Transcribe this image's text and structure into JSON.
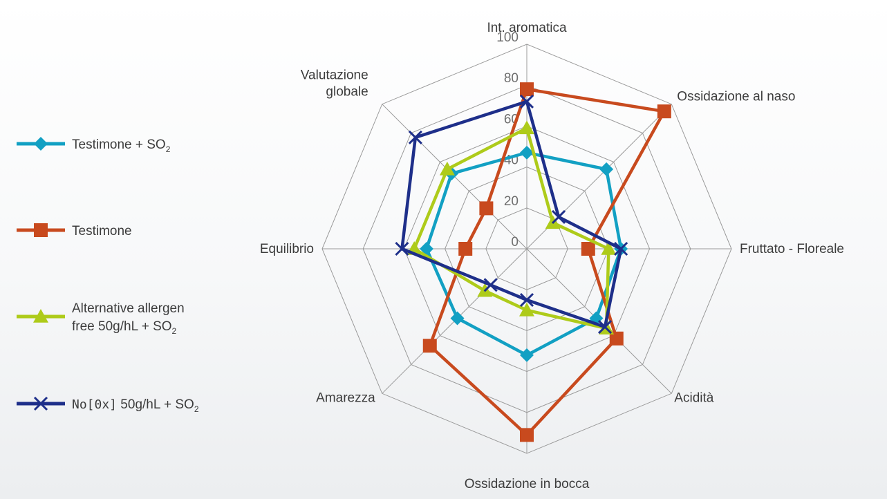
{
  "chart_data": {
    "type": "radar",
    "title": "",
    "axes": [
      "Int. aromatica",
      "Ossidazione al naso",
      "Fruttato - Floreale",
      "Acidità",
      "Ossidazione in bocca",
      "Amarezza",
      "Equilibrio",
      "Valutazione globale"
    ],
    "axis_label_lines": [
      [
        "Int. aromatica"
      ],
      [
        "Ossidazione al naso"
      ],
      [
        "Fruttato - Floreale"
      ],
      [
        "Acidità"
      ],
      [
        "Ossidazione in bocca"
      ],
      [
        "Amarezza"
      ],
      [
        "Equilibrio"
      ],
      [
        "Valutazione",
        "globale"
      ]
    ],
    "rlim": [
      0,
      100
    ],
    "ticks": [
      "0",
      "20",
      "40",
      "60",
      "80",
      "100"
    ],
    "tick_values": [
      0,
      20,
      40,
      60,
      80,
      100
    ],
    "grid": true,
    "legend_position": "left",
    "series": [
      {
        "key": "testimone_so2",
        "legend": {
          "main": "Testimone + SO",
          "sub": "2"
        },
        "color": "#12a0c3",
        "marker": "diamond",
        "values": [
          47,
          55,
          46,
          48,
          52,
          48,
          49,
          52
        ]
      },
      {
        "key": "testimone",
        "legend": {
          "main": "Testimone",
          "sub": ""
        },
        "color": "#c84a1e",
        "marker": "square",
        "values": [
          78,
          95,
          30,
          62,
          91,
          67,
          30,
          28
        ]
      },
      {
        "key": "alternative",
        "legend": {
          "lines": [
            "Alternative allergen",
            "free 50g/hL + SO"
          ],
          "sub": "2"
        },
        "color": "#aecb1a",
        "marker": "triangle",
        "values": [
          59,
          18,
          40,
          55,
          30,
          29,
          55,
          55
        ]
      },
      {
        "key": "noox",
        "legend": {
          "prefix": "No[0x]",
          "main": " 50g/hL + SO",
          "sub": "2"
        },
        "color": "#1e2f8a",
        "marker": "x",
        "values": [
          72,
          22,
          46,
          54,
          25,
          25,
          61,
          77
        ]
      }
    ]
  }
}
